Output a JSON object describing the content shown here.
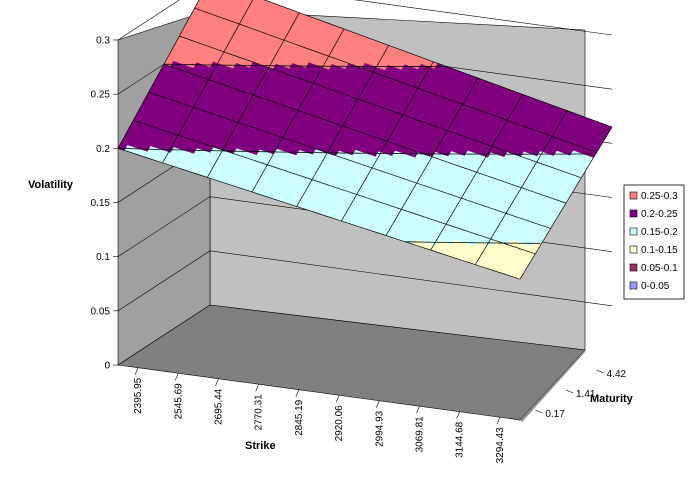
{
  "chart_data": {
    "type": "surface",
    "title": "",
    "zlabel": "Volatility",
    "xlabel": "Strike",
    "ylabel": "Maturity",
    "zlim": [
      0,
      0.3
    ],
    "z_ticks": [
      "0",
      "0.05",
      "0.1",
      "0.15",
      "0.2",
      "0.25",
      "0.3"
    ],
    "strikes": [
      "2395.95",
      "2545.69",
      "2695.44",
      "2770.31",
      "2845.19",
      "2920.06",
      "2994.93",
      "3069.81",
      "3144.68",
      "3294.43"
    ],
    "maturities": [
      "0.17",
      "1.41",
      "4.42"
    ],
    "surface": {
      "corner_values": {
        "min_strike_near_maturity": 0.2,
        "max_strike_near_maturity": 0.13,
        "min_strike_far_maturity": 0.3,
        "max_strike_far_maturity": 0.215
      },
      "grid_rows": 6,
      "grid_cols": 9
    },
    "legend": {
      "position": "right",
      "items": [
        {
          "label": "0.25-0.3",
          "color": "#FF8080"
        },
        {
          "label": "0.2-0.25",
          "color": "#800080"
        },
        {
          "label": "0.15-0.2",
          "color": "#CCFFFF"
        },
        {
          "label": "0.1-0.15",
          "color": "#FFFFCC"
        },
        {
          "label": "0.05-0.1",
          "color": "#993366"
        },
        {
          "label": "0-0.05",
          "color": "#9999FF"
        }
      ]
    },
    "colors": {
      "back_wall": "#C0C0C0",
      "side_wall": "#A0A0A0",
      "floor": "#808080",
      "gridline": "#000000"
    },
    "grid": true
  }
}
